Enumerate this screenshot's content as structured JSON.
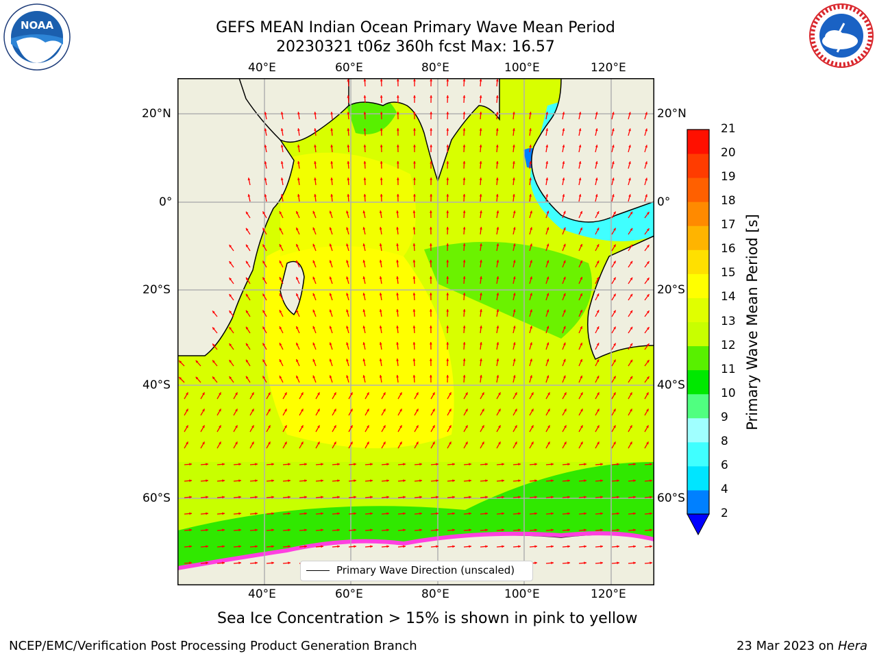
{
  "title": {
    "line1": "GEFS MEAN Indian Ocean Primary Wave Mean Period",
    "line2": "20230321 t06z 360h fcst   Max: 16.57"
  },
  "logos": {
    "left": {
      "icon": "noaa-logo",
      "text": "NOAA",
      "ring_text": "NATIONAL OCEANIC AND ATMOSPHERIC ADMINISTRATION · U.S. DEPARTMENT OF COMMERCE"
    },
    "right": {
      "icon": "nws-logo",
      "ring_text": "NATIONAL WEATHER SERVICE"
    }
  },
  "map": {
    "lon_labels": [
      "40°E",
      "60°E",
      "80°E",
      "100°E",
      "120°E"
    ],
    "lat_labels": [
      "20°N",
      "0°",
      "20°S",
      "40°S",
      "60°S"
    ],
    "lon_range": [
      20,
      130
    ],
    "colors": {
      "land": "#efefdf",
      "coast": "#000000",
      "arrow": "#ff0000",
      "grid": "#b0b0b0"
    }
  },
  "legend": {
    "label": "Primary Wave Direction (unscaled)"
  },
  "colorbar": {
    "label": "Primary Wave Mean Period [s]",
    "ticks": [
      "2",
      "4",
      "6",
      "8",
      "9",
      "10",
      "11",
      "12",
      "13",
      "14",
      "15",
      "16",
      "17",
      "18",
      "19",
      "20",
      "21"
    ],
    "colors": [
      "#0080ff",
      "#00e5ff",
      "#40ffff",
      "#a0ffff",
      "#50ff80",
      "#00e800",
      "#58f000",
      "#c8ff00",
      "#e0ff00",
      "#ffff00",
      "#ffe000",
      "#ffb400",
      "#ff8a00",
      "#ff6000",
      "#ff3c00",
      "#ff1000"
    ],
    "extend_color": "#0000ff"
  },
  "note": "Sea Ice Concentration > 15% is shown in pink to yellow",
  "footer": {
    "left": "NCEP/EMC/Verification Post Processing Product Generation Branch",
    "right_date": "23 Mar 2023 on",
    "right_host": "Hera"
  }
}
